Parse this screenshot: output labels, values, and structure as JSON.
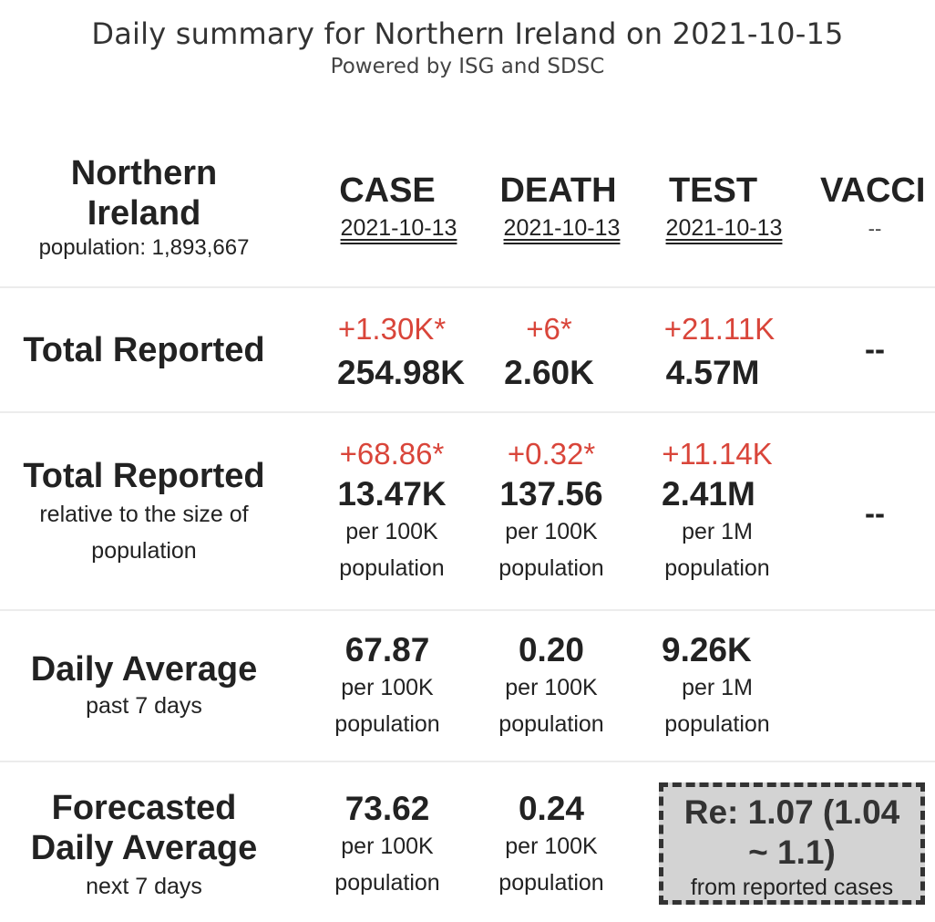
{
  "title": "Daily summary for Northern Ireland on 2021-10-15",
  "subtitle": "Powered by ISG and SDSC",
  "region": {
    "name_line1": "Northern",
    "name_line2": "Ireland",
    "population": "population: 1,893,667"
  },
  "columns": [
    {
      "header": "CASE",
      "date": "2021-10-13"
    },
    {
      "header": "DEATH",
      "date": "2021-10-13"
    },
    {
      "header": "TEST",
      "date": "2021-10-13"
    },
    {
      "header": "VACCI",
      "date": "--"
    }
  ],
  "total_reported": {
    "label": "Total Reported",
    "case": {
      "delta": "+1.30K*",
      "value": "254.98K"
    },
    "death": {
      "delta": "+6*",
      "value": "2.60K"
    },
    "test": {
      "delta": "+21.11K",
      "value": "4.57M"
    },
    "vaccine": "--"
  },
  "relative": {
    "label": "Total Reported",
    "sub1": "relative to the size of",
    "sub2": "population",
    "case": {
      "delta": "+68.86*",
      "value": "13.47K",
      "unit1": "per 100K",
      "unit2": "population"
    },
    "death": {
      "delta": "+0.32*",
      "value": "137.56",
      "unit1": "per 100K",
      "unit2": "population"
    },
    "test": {
      "delta": "+11.14K",
      "value": "2.41M",
      "unit1": "per 1M",
      "unit2": "population"
    },
    "vaccine": "--"
  },
  "daily_average": {
    "label": "Daily Average",
    "sub": "past 7 days",
    "case": {
      "value": "67.87",
      "unit1": "per 100K",
      "unit2": "population"
    },
    "death": {
      "value": "0.20",
      "unit1": "per 100K",
      "unit2": "population"
    },
    "test": {
      "value": "9.26K",
      "unit1": "per 1M",
      "unit2": "population"
    }
  },
  "forecast": {
    "label1": "Forecasted",
    "label2": "Daily Average",
    "sub": "next 7 days",
    "case": {
      "value": "73.62",
      "unit1": "per 100K",
      "unit2": "population"
    },
    "death": {
      "value": "0.24",
      "unit1": "per 100K",
      "unit2": "population"
    },
    "re_value_line1": "Re: 1.07 (1.04",
    "re_value_line2": "~ 1.1)",
    "re_note": "from reported cases"
  },
  "colors": {
    "delta": "#d9453a",
    "re_box_bg": "#d3d3d3"
  }
}
